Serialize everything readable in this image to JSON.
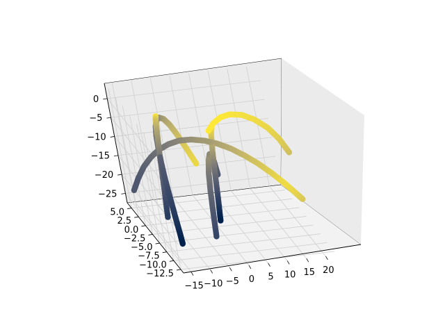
{
  "chart_data": {
    "type": "scatter",
    "projection": "3d",
    "title": "",
    "xlabel": "",
    "ylabel": "",
    "zlabel": "",
    "colormap": "cividis",
    "color_range": [
      "#00204c",
      "#fde838"
    ],
    "grid": true,
    "pane_color": "#ebebeb",
    "x_ticks": [
      "−15",
      "−10",
      "−5",
      "0",
      "5",
      "10",
      "15",
      "20"
    ],
    "y_ticks": [
      "−12.5",
      "−10.0",
      "−7.5",
      "−5.0",
      "−2.5",
      "0.0",
      "2.5",
      "5.0"
    ],
    "z_ticks": [
      "−25",
      "−20",
      "−15",
      "−10",
      "−5",
      "0"
    ],
    "xlim": [
      -17,
      23
    ],
    "ylim": [
      -13.5,
      6.5
    ],
    "zlim": [
      -27.5,
      4
    ],
    "series": [
      {
        "x": [
          -13.0,
          -12.9,
          -12.8,
          -12.6,
          -12.3,
          -11.9,
          -11.3,
          -10.5,
          -9.6,
          -8.5,
          -7.2,
          -5.8,
          -4.2,
          -2.6,
          -1.0,
          0.6,
          2.2
        ],
        "y": [
          -8.4,
          -7.9,
          -7.2,
          -6.3,
          -5.2,
          -3.9,
          -2.5,
          -1.0,
          0.5,
          2.0,
          3.4,
          4.6,
          5.5,
          6.1,
          6.4,
          6.4,
          6.0
        ],
        "z": [
          -25.0,
          -23.0,
          -20.5,
          -17.7,
          -14.8,
          -11.9,
          -9.2,
          -6.9,
          -5.2,
          -4.2,
          -4.0,
          -4.6,
          -6.0,
          -8.3,
          -11.4,
          -15.0,
          -19.0
        ],
        "c": [
          0.0,
          0.05,
          0.11,
          0.17,
          0.22,
          0.28,
          0.34,
          0.4,
          0.46,
          0.52,
          0.58,
          0.64,
          0.7,
          0.76,
          0.82,
          0.88,
          0.94
        ]
      },
      {
        "x": [
          -16.0,
          -14.6,
          -13.0,
          -11.2,
          -9.2,
          -7.0,
          -4.6,
          -2.0,
          0.8,
          3.6,
          6.4,
          9.2,
          12.0,
          14.8,
          17.4,
          19.6,
          21.0
        ],
        "y": [
          4.0,
          3.5,
          2.8,
          2.0,
          1.2,
          0.3,
          -0.6,
          -1.5,
          -2.4,
          -3.2,
          -3.9,
          -4.5,
          -5.0,
          -5.4,
          -5.7,
          -5.9,
          -6.0
        ],
        "z": [
          -22.0,
          -18.5,
          -15.0,
          -12.0,
          -9.5,
          -7.5,
          -6.0,
          -5.2,
          -5.0,
          -5.4,
          -6.4,
          -8.0,
          -10.0,
          -12.5,
          -15.2,
          -17.8,
          -19.5
        ],
        "c": [
          0.3,
          0.3,
          0.35,
          0.4,
          0.45,
          0.5,
          0.55,
          0.6,
          0.65,
          0.7,
          0.75,
          0.8,
          0.85,
          0.9,
          0.95,
          0.9,
          0.85
        ]
      },
      {
        "x": [
          -12.0,
          -11.5,
          -11.0,
          -10.5,
          -10.2,
          -10.0
        ],
        "y": [
          -2.0,
          -2.0,
          -1.9,
          -1.8,
          -1.7,
          -1.6
        ],
        "z": [
          -24.0,
          -16.0,
          -8.0,
          -2.0,
          1.0,
          2.0
        ],
        "c": [
          0.15,
          0.3,
          0.5,
          0.7,
          0.85,
          1.0
        ]
      },
      {
        "x": [
          -3.0,
          -2.2,
          -1.2,
          0.0,
          1.4,
          2.8,
          4.0,
          5.0,
          5.8
        ],
        "y": [
          -6.5,
          -5.6,
          -4.4,
          -3.0,
          -1.5,
          0.0,
          1.4,
          2.6,
          3.5
        ],
        "z": [
          -26.0,
          -21.0,
          -16.5,
          -13.0,
          -11.2,
          -11.0,
          -12.6,
          -15.8,
          -20.0
        ],
        "c": [
          0.2,
          0.3,
          0.4,
          0.5,
          0.6,
          0.55,
          0.45,
          0.35,
          0.3
        ]
      },
      {
        "x": [
          2.0,
          3.5,
          5.5,
          8.0,
          11.0,
          14.0,
          17.0,
          19.5,
          21.5
        ],
        "y": [
          -3.0,
          -3.2,
          -3.3,
          -3.4,
          -3.5,
          -3.5,
          -3.4,
          -3.2,
          -3.0
        ],
        "z": [
          -2.0,
          0.0,
          1.4,
          2.0,
          1.6,
          0.0,
          -2.6,
          -6.0,
          -10.0
        ],
        "c": [
          1.0,
          1.0,
          1.0,
          0.98,
          0.96,
          0.94,
          0.92,
          0.88,
          0.82
        ]
      },
      {
        "x": [
          1.0,
          1.4,
          1.8,
          2.2,
          2.6,
          3.0
        ],
        "y": [
          -2.5,
          -2.6,
          -2.7,
          -2.8,
          -2.9,
          -3.0
        ],
        "z": [
          -26.0,
          -20.0,
          -13.0,
          -7.0,
          -3.0,
          -1.0
        ],
        "c": [
          0.0,
          0.2,
          0.45,
          0.7,
          0.9,
          1.0
        ]
      }
    ]
  }
}
